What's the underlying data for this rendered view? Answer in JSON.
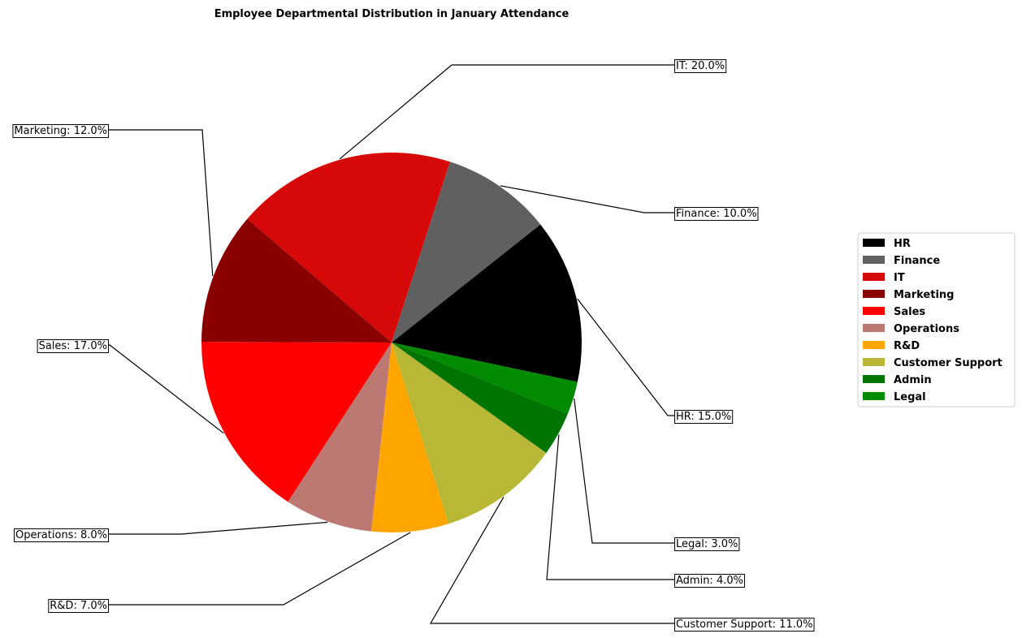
{
  "chart_data": {
    "type": "pie",
    "title": "Employee Departmental Distribution in January Attendance",
    "labels": [
      "HR",
      "Finance",
      "IT",
      "Marketing",
      "Sales",
      "Operations",
      "R&D",
      "Customer Support",
      "Admin",
      "Legal"
    ],
    "values": [
      15.0,
      10.0,
      20.0,
      12.0,
      17.0,
      8.0,
      7.0,
      11.0,
      4.0,
      3.0
    ],
    "value_format": "{label}: {value}%",
    "colors": [
      "#000000",
      "#606060",
      "#d60808",
      "#8a0000",
      "#ff0000",
      "#bc7873",
      "#ffa500",
      "#b8b836",
      "#007400",
      "#008b00"
    ],
    "legend": {
      "placement": "right",
      "entries": [
        "HR",
        "Finance",
        "IT",
        "Marketing",
        "Sales",
        "Operations",
        "R&D",
        "Customer Support",
        "Admin",
        "Legal"
      ]
    }
  }
}
